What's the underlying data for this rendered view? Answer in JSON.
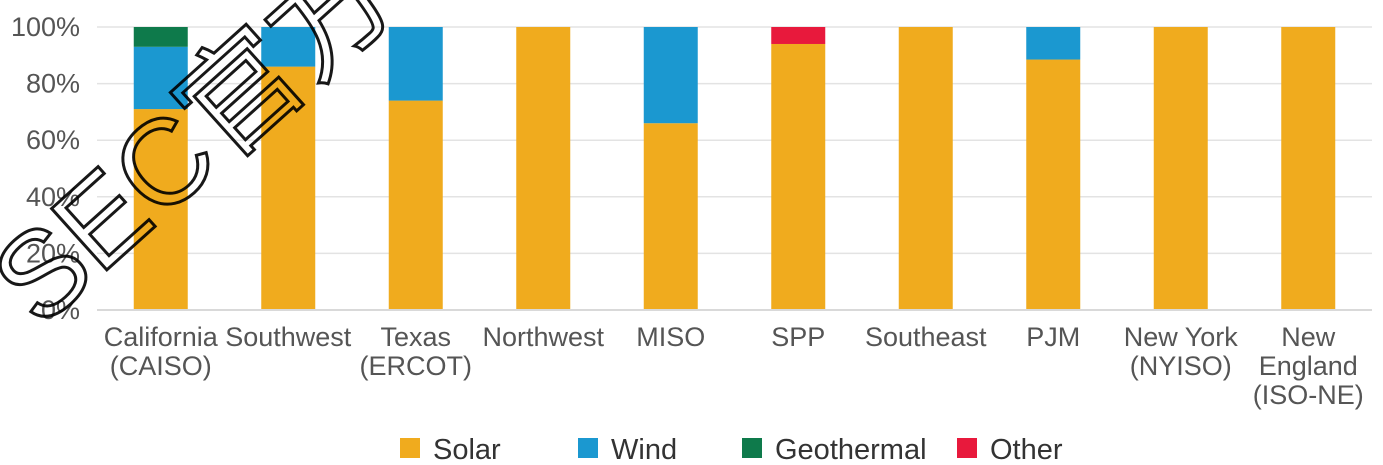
{
  "chart_data": {
    "type": "bar",
    "stacked": true,
    "categories": [
      [
        "California",
        "(CAISO)"
      ],
      [
        "Southwest"
      ],
      [
        "Texas",
        "(ERCOT)"
      ],
      [
        "Northwest"
      ],
      [
        "MISO"
      ],
      [
        "SPP"
      ],
      [
        "Southeast"
      ],
      [
        "PJM"
      ],
      [
        "New York",
        "(NYISO)"
      ],
      [
        "New",
        "England",
        "(ISO-NE)"
      ]
    ],
    "series": [
      {
        "name": "Solar",
        "color": "#f0ab1e",
        "values": [
          71,
          86,
          74,
          100,
          66,
          94,
          100,
          88.5,
          100,
          100
        ]
      },
      {
        "name": "Wind",
        "color": "#1b98d0",
        "values": [
          22,
          14,
          26,
          0,
          34,
          0,
          0,
          11.5,
          0,
          0
        ]
      },
      {
        "name": "Geothermal",
        "color": "#0e7a4b",
        "values": [
          7,
          0,
          0,
          0,
          0,
          0,
          0,
          0,
          0,
          0
        ]
      },
      {
        "name": "Other",
        "color": "#e8193c",
        "values": [
          0,
          0,
          0,
          0,
          0,
          6,
          0,
          0,
          0,
          0
        ]
      }
    ],
    "yticks": [
      "0%",
      "20%",
      "40%",
      "60%",
      "80%",
      "100%"
    ],
    "ylim": [
      0,
      100
    ],
    "grid": true,
    "legend": "bottom-center",
    "watermark": "SEC官方"
  }
}
